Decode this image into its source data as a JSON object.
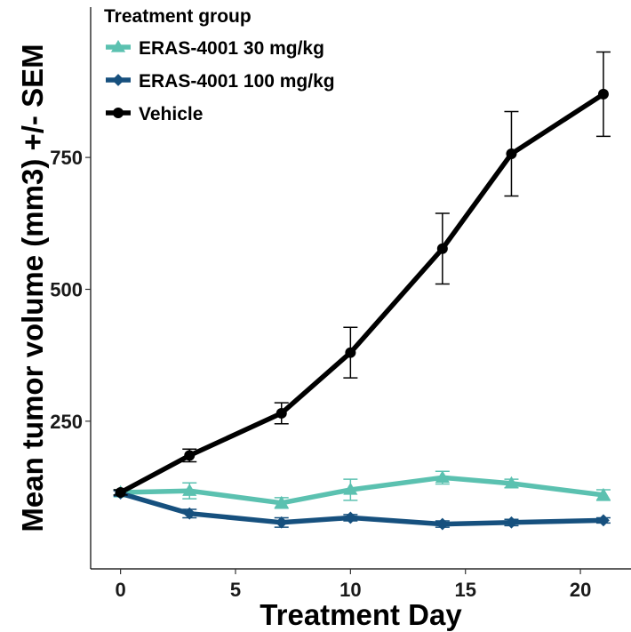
{
  "chart_data": {
    "type": "line",
    "xlabel": "Treatment Day",
    "ylabel": "Mean tumor volume (mm3) +/- SEM",
    "xlim": [
      -1.3,
      22.2
    ],
    "ylim": [
      -30,
      1035
    ],
    "x_ticks": [
      0,
      5,
      10,
      15,
      20
    ],
    "y_ticks": [
      250,
      500,
      750
    ],
    "grid": false,
    "legend": {
      "title": "Treatment group",
      "placement": "top-left"
    },
    "series": [
      {
        "name": "ERAS-4001 30 mg/kg",
        "color": "#5BC1B0",
        "marker": "triangle",
        "x": [
          0,
          3,
          7,
          10,
          14,
          17,
          21
        ],
        "y": [
          115,
          118,
          95,
          120,
          143,
          132,
          110
        ],
        "err": [
          5,
          15,
          10,
          20,
          12,
          8,
          10
        ]
      },
      {
        "name": "ERAS-4001 100 mg/kg",
        "color": "#16507E",
        "marker": "diamond",
        "x": [
          0,
          3,
          7,
          10,
          14,
          17,
          21
        ],
        "y": [
          113,
          75,
          58,
          67,
          55,
          58,
          62
        ],
        "err": [
          5,
          8,
          9,
          6,
          6,
          6,
          5
        ]
      },
      {
        "name": "Vehicle",
        "color": "#000000",
        "marker": "circle",
        "x": [
          0,
          3,
          7,
          10,
          14,
          17,
          21
        ],
        "y": [
          115,
          185,
          265,
          380,
          577,
          757,
          870
        ],
        "err": [
          5,
          12,
          20,
          48,
          67,
          80,
          80
        ]
      }
    ]
  }
}
